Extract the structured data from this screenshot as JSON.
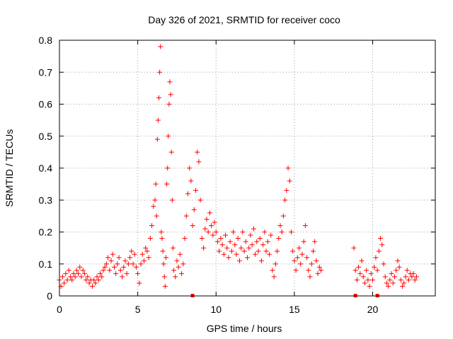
{
  "chart_data": {
    "type": "scatter",
    "title": "Day 326 of 2021, SRMTID for receiver coco",
    "xlabel": "GPS time / hours",
    "ylabel": "SRMTID / TECUs",
    "xlim": [
      0,
      24
    ],
    "ylim": [
      0,
      0.8
    ],
    "x_ticks": [
      0,
      5,
      10,
      15,
      20
    ],
    "x_tick_labels": [
      "0",
      "5",
      "10",
      "15",
      "20"
    ],
    "y_ticks": [
      0,
      0.1,
      0.2,
      0.3,
      0.4,
      0.5,
      0.6,
      0.7,
      0.8
    ],
    "y_tick_labels": [
      "0",
      "0.1",
      "0.2",
      "0.3",
      "0.4",
      "0.5",
      "0.6",
      "0.7",
      "0.8"
    ],
    "grid": true,
    "marker": "plus",
    "color": "#ff0000",
    "series": [
      {
        "name": "SRMTID",
        "points": [
          [
            0.0,
            0.05
          ],
          [
            0.1,
            0.03
          ],
          [
            0.2,
            0.06
          ],
          [
            0.3,
            0.04
          ],
          [
            0.4,
            0.07
          ],
          [
            0.5,
            0.05
          ],
          [
            0.6,
            0.08
          ],
          [
            0.7,
            0.06
          ],
          [
            0.8,
            0.05
          ],
          [
            0.9,
            0.07
          ],
          [
            1.0,
            0.06
          ],
          [
            1.1,
            0.08
          ],
          [
            1.2,
            0.07
          ],
          [
            1.3,
            0.09
          ],
          [
            1.4,
            0.06
          ],
          [
            1.5,
            0.08
          ],
          [
            1.6,
            0.07
          ],
          [
            1.7,
            0.05
          ],
          [
            1.8,
            0.06
          ],
          [
            1.9,
            0.04
          ],
          [
            2.0,
            0.05
          ],
          [
            2.1,
            0.03
          ],
          [
            2.2,
            0.05
          ],
          [
            2.3,
            0.04
          ],
          [
            2.4,
            0.06
          ],
          [
            2.5,
            0.05
          ],
          [
            2.6,
            0.07
          ],
          [
            2.7,
            0.06
          ],
          [
            2.8,
            0.08
          ],
          [
            2.9,
            0.09
          ],
          [
            3.0,
            0.1
          ],
          [
            3.1,
            0.12
          ],
          [
            3.2,
            0.08
          ],
          [
            3.3,
            0.11
          ],
          [
            3.4,
            0.13
          ],
          [
            3.5,
            0.09
          ],
          [
            3.6,
            0.07
          ],
          [
            3.7,
            0.1
          ],
          [
            3.8,
            0.12
          ],
          [
            3.9,
            0.08
          ],
          [
            4.0,
            0.06
          ],
          [
            4.1,
            0.09
          ],
          [
            4.2,
            0.11
          ],
          [
            4.3,
            0.07
          ],
          [
            4.4,
            0.1
          ],
          [
            4.5,
            0.12
          ],
          [
            4.6,
            0.14
          ],
          [
            4.7,
            0.1
          ],
          [
            4.8,
            0.13
          ],
          [
            4.9,
            0.09
          ],
          [
            5.0,
            0.07
          ],
          [
            5.1,
            0.04
          ],
          [
            5.2,
            0.1
          ],
          [
            5.3,
            0.13
          ],
          [
            5.4,
            0.11
          ],
          [
            5.5,
            0.15
          ],
          [
            5.6,
            0.14
          ],
          [
            5.7,
            0.12
          ],
          [
            5.8,
            0.18
          ],
          [
            5.9,
            0.22
          ],
          [
            6.0,
            0.28
          ],
          [
            6.1,
            0.3
          ],
          [
            6.15,
            0.35
          ],
          [
            6.2,
            0.25
          ],
          [
            6.25,
            0.49
          ],
          [
            6.3,
            0.55
          ],
          [
            6.35,
            0.62
          ],
          [
            6.4,
            0.7
          ],
          [
            6.45,
            0.78
          ],
          [
            6.5,
            0.2
          ],
          [
            6.55,
            0.18
          ],
          [
            6.6,
            0.14
          ],
          [
            6.65,
            0.1
          ],
          [
            6.7,
            0.06
          ],
          [
            6.75,
            0.03
          ],
          [
            6.8,
            0.12
          ],
          [
            6.85,
            0.35
          ],
          [
            6.9,
            0.4
          ],
          [
            6.95,
            0.5
          ],
          [
            7.0,
            0.6
          ],
          [
            7.05,
            0.67
          ],
          [
            7.1,
            0.63
          ],
          [
            7.15,
            0.45
          ],
          [
            7.2,
            0.3
          ],
          [
            7.25,
            0.15
          ],
          [
            7.3,
            0.08
          ],
          [
            7.4,
            0.06
          ],
          [
            7.5,
            0.11
          ],
          [
            7.6,
            0.09
          ],
          [
            7.7,
            0.13
          ],
          [
            7.8,
            0.07
          ],
          [
            7.9,
            0.1
          ],
          [
            8.0,
            0.18
          ],
          [
            8.1,
            0.25
          ],
          [
            8.2,
            0.32
          ],
          [
            8.3,
            0.4
          ],
          [
            8.4,
            0.36
          ],
          [
            8.5,
            0.22
          ],
          [
            8.6,
            0.27
          ],
          [
            8.7,
            0.33
          ],
          [
            8.8,
            0.45
          ],
          [
            8.9,
            0.42
          ],
          [
            9.0,
            0.3
          ],
          [
            9.1,
            0.18
          ],
          [
            9.2,
            0.15
          ],
          [
            9.3,
            0.21
          ],
          [
            9.4,
            0.24
          ],
          [
            9.5,
            0.2
          ],
          [
            9.6,
            0.26
          ],
          [
            9.7,
            0.22
          ],
          [
            9.8,
            0.19
          ],
          [
            9.9,
            0.23
          ],
          [
            10.0,
            0.2
          ],
          [
            10.1,
            0.17
          ],
          [
            10.2,
            0.14
          ],
          [
            10.3,
            0.18
          ],
          [
            10.4,
            0.16
          ],
          [
            10.5,
            0.13
          ],
          [
            10.6,
            0.19
          ],
          [
            10.7,
            0.15
          ],
          [
            10.8,
            0.12
          ],
          [
            10.9,
            0.17
          ],
          [
            11.0,
            0.14
          ],
          [
            11.1,
            0.2
          ],
          [
            11.2,
            0.16
          ],
          [
            11.3,
            0.13
          ],
          [
            11.4,
            0.18
          ],
          [
            11.5,
            0.11
          ],
          [
            11.6,
            0.15
          ],
          [
            11.7,
            0.2
          ],
          [
            11.8,
            0.14
          ],
          [
            11.9,
            0.17
          ],
          [
            12.0,
            0.12
          ],
          [
            12.1,
            0.15
          ],
          [
            12.2,
            0.19
          ],
          [
            12.3,
            0.16
          ],
          [
            12.4,
            0.21
          ],
          [
            12.5,
            0.13
          ],
          [
            12.6,
            0.17
          ],
          [
            12.7,
            0.14
          ],
          [
            12.8,
            0.18
          ],
          [
            12.9,
            0.11
          ],
          [
            13.0,
            0.16
          ],
          [
            13.1,
            0.2
          ],
          [
            13.2,
            0.14
          ],
          [
            13.3,
            0.17
          ],
          [
            13.4,
            0.13
          ],
          [
            13.5,
            0.19
          ],
          [
            13.6,
            0.08
          ],
          [
            13.7,
            0.06
          ],
          [
            13.8,
            0.1
          ],
          [
            13.9,
            0.14
          ],
          [
            14.0,
            0.18
          ],
          [
            14.1,
            0.22
          ],
          [
            14.2,
            0.2
          ],
          [
            14.3,
            0.25
          ],
          [
            14.4,
            0.3
          ],
          [
            14.5,
            0.33
          ],
          [
            14.6,
            0.4
          ],
          [
            14.7,
            0.36
          ],
          [
            14.8,
            0.2
          ],
          [
            14.9,
            0.14
          ],
          [
            15.0,
            0.11
          ],
          [
            15.1,
            0.08
          ],
          [
            15.2,
            0.12
          ],
          [
            15.3,
            0.15
          ],
          [
            15.4,
            0.1
          ],
          [
            15.5,
            0.13
          ],
          [
            15.6,
            0.17
          ],
          [
            15.7,
            0.22
          ],
          [
            15.8,
            0.12
          ],
          [
            15.9,
            0.08
          ],
          [
            16.0,
            0.06
          ],
          [
            16.1,
            0.1
          ],
          [
            16.2,
            0.14
          ],
          [
            16.3,
            0.17
          ],
          [
            16.4,
            0.11
          ],
          [
            16.5,
            0.07
          ],
          [
            16.6,
            0.09
          ],
          [
            16.7,
            0.08
          ],
          [
            18.8,
            0.15
          ],
          [
            18.9,
            0.08
          ],
          [
            19.0,
            0.05
          ],
          [
            19.1,
            0.09
          ],
          [
            19.2,
            0.07
          ],
          [
            19.3,
            0.11
          ],
          [
            19.4,
            0.06
          ],
          [
            19.5,
            0.04
          ],
          [
            19.6,
            0.08
          ],
          [
            19.7,
            0.05
          ],
          [
            19.8,
            0.03
          ],
          [
            19.9,
            0.07
          ],
          [
            20.0,
            0.05
          ],
          [
            20.1,
            0.09
          ],
          [
            20.2,
            0.12
          ],
          [
            20.3,
            0.08
          ],
          [
            20.4,
            0.14
          ],
          [
            20.5,
            0.18
          ],
          [
            20.6,
            0.16
          ],
          [
            20.7,
            0.1
          ],
          [
            20.8,
            0.06
          ],
          [
            20.9,
            0.04
          ],
          [
            21.0,
            0.03
          ],
          [
            21.1,
            0.05
          ],
          [
            21.2,
            0.07
          ],
          [
            21.3,
            0.04
          ],
          [
            21.4,
            0.06
          ],
          [
            21.5,
            0.08
          ],
          [
            21.6,
            0.11
          ],
          [
            21.7,
            0.09
          ],
          [
            21.8,
            0.05
          ],
          [
            21.9,
            0.03
          ],
          [
            22.0,
            0.04
          ],
          [
            22.1,
            0.06
          ],
          [
            22.2,
            0.08
          ],
          [
            22.3,
            0.05
          ],
          [
            22.4,
            0.07
          ],
          [
            22.5,
            0.06
          ],
          [
            22.6,
            0.07
          ],
          [
            22.7,
            0.05
          ],
          [
            22.8,
            0.06
          ]
        ]
      },
      {
        "name": "markers",
        "marker": "square",
        "points": [
          [
            8.5,
            0.0
          ],
          [
            18.9,
            0.0
          ],
          [
            20.3,
            0.0
          ]
        ]
      }
    ]
  }
}
